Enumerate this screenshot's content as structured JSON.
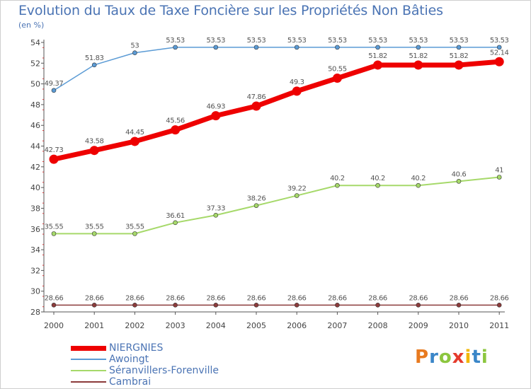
{
  "title": "Evolution du Taux de Taxe Foncière sur les Propriétés Non Bâties",
  "unit": "(en %)",
  "logo": {
    "text": "Proxiti",
    "colors": [
      "#e87a1f",
      "#3a86c8",
      "#8cc63f",
      "#e53b2c",
      "#f2b705",
      "#3a86c8",
      "#8cc63f"
    ]
  },
  "chart_data": {
    "type": "line",
    "x": [
      "2000",
      "2001",
      "2002",
      "2003",
      "2004",
      "2005",
      "2006",
      "2007",
      "2008",
      "2009",
      "2010",
      "2011"
    ],
    "ylim": [
      28,
      54
    ],
    "yticks": [
      28,
      30,
      32,
      34,
      36,
      38,
      40,
      42,
      44,
      46,
      48,
      50,
      52,
      54
    ],
    "grid": false,
    "legend_position": "bottom-left",
    "series": [
      {
        "name": "NIERGNIES",
        "color": "#ee0000",
        "width": 7,
        "radius": 6.5,
        "values": [
          42.73,
          43.58,
          44.45,
          45.56,
          46.93,
          47.86,
          49.3,
          50.55,
          51.82,
          51.82,
          51.82,
          52.14
        ],
        "labels": [
          "42.73",
          "43.58",
          "44.45",
          "45.56",
          "46.93",
          "47.86",
          "49.3",
          "50.55",
          "51.82",
          "51.82",
          "51.82",
          "52.14"
        ]
      },
      {
        "name": "Awoingt",
        "color": "#5b9bd5",
        "width": 1.5,
        "radius": 3,
        "values": [
          49.37,
          51.83,
          53,
          53.53,
          53.53,
          53.53,
          53.53,
          53.53,
          53.53,
          53.53,
          53.53,
          53.53
        ],
        "labels": [
          "49.37",
          "51.83",
          "53",
          "53.53",
          "53.53",
          "53.53",
          "53.53",
          "53.53",
          "53.53",
          "53.53",
          "53.53",
          "53.53"
        ]
      },
      {
        "name": "Séranvillers-Forenville",
        "color": "#a6d96a",
        "width": 2,
        "radius": 3,
        "values": [
          35.55,
          35.55,
          35.55,
          36.61,
          37.33,
          38.26,
          39.22,
          40.2,
          40.2,
          40.2,
          40.6,
          41
        ],
        "labels": [
          "35.55",
          "35.55",
          "35.55",
          "36.61",
          "37.33",
          "38.26",
          "39.22",
          "40.2",
          "40.2",
          "40.2",
          "40.6",
          "41"
        ]
      },
      {
        "name": "Cambrai",
        "color": "#8c3b3b",
        "width": 1.5,
        "radius": 3,
        "values": [
          28.66,
          28.66,
          28.66,
          28.66,
          28.66,
          28.66,
          28.66,
          28.66,
          28.66,
          28.66,
          28.66,
          28.66
        ],
        "labels": [
          "28.66",
          "28.66",
          "28.66",
          "28.66",
          "28.66",
          "28.66",
          "28.66",
          "28.66",
          "28.66",
          "28.66",
          "28.66",
          "28.66"
        ]
      }
    ]
  }
}
